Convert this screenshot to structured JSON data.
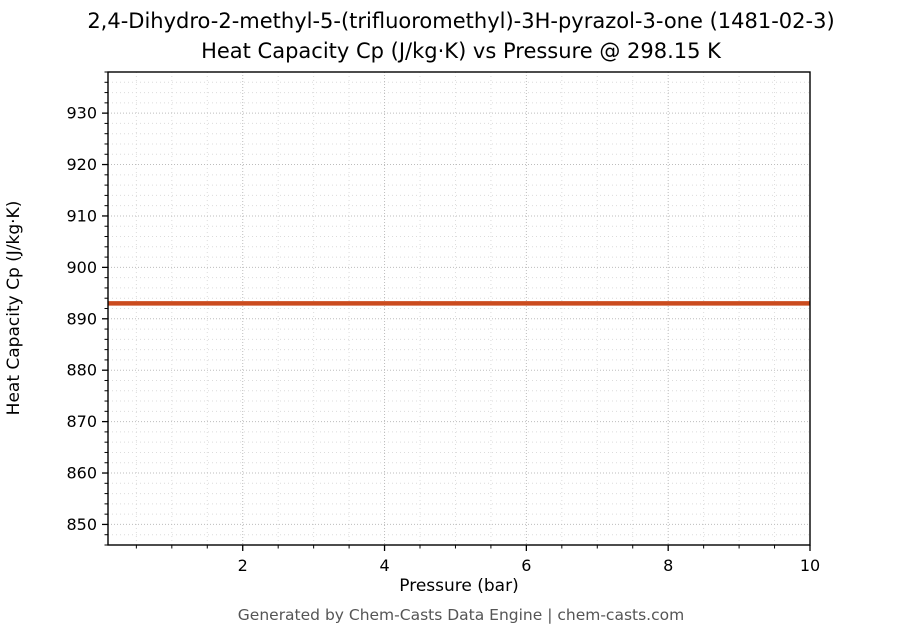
{
  "figure": {
    "title_line1": "2,4-Dihydro-2-methyl-5-(trifluoromethyl)-3H-pyrazol-3-one (1481-02-3)",
    "title_line2": "Heat Capacity Cp (J/kg·K) vs Pressure @ 298.15 K",
    "footer": "Generated by Chem-Casts Data Engine | chem-casts.com"
  },
  "chart_data": {
    "type": "line",
    "title": "2,4-Dihydro-2-methyl-5-(trifluoromethyl)-3H-pyrazol-3-one (1481-02-3)",
    "subtitle": "Heat Capacity Cp (J/kg·K) vs Pressure @ 298.15 K",
    "xlabel": "Pressure (bar)",
    "ylabel": "Heat Capacity Cp (J/kg·K)",
    "xlim": [
      0.1,
      10.0
    ],
    "ylim": [
      846,
      938
    ],
    "xticks": [
      2,
      4,
      6,
      8,
      10
    ],
    "yticks": [
      850,
      860,
      870,
      880,
      890,
      900,
      910,
      920,
      930
    ],
    "x_minor_step": 0.5,
    "y_minor_step": 2,
    "grid": true,
    "legend": "none",
    "series": [
      {
        "name": "Heat Capacity Cp",
        "color": "#cb4b1e",
        "x": [
          0.1,
          1,
          2,
          3,
          4,
          5,
          6,
          7,
          8,
          9,
          10
        ],
        "y": [
          893,
          893,
          893,
          893,
          893,
          893,
          893,
          893,
          893,
          893,
          893
        ]
      }
    ],
    "annotations": []
  },
  "style": {
    "major_grid_color": "#bdbdbd",
    "minor_grid_color": "#dcdcdc",
    "spine_color": "#000000",
    "tick_label_color": "#000000"
  }
}
